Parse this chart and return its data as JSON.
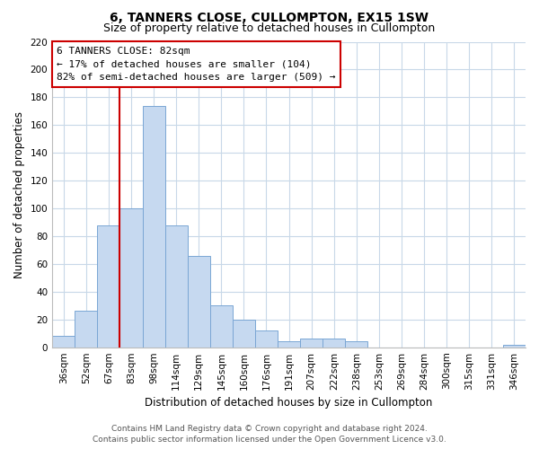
{
  "title": "6, TANNERS CLOSE, CULLOMPTON, EX15 1SW",
  "subtitle": "Size of property relative to detached houses in Cullompton",
  "xlabel": "Distribution of detached houses by size in Cullompton",
  "ylabel": "Number of detached properties",
  "bar_labels": [
    "36sqm",
    "52sqm",
    "67sqm",
    "83sqm",
    "98sqm",
    "114sqm",
    "129sqm",
    "145sqm",
    "160sqm",
    "176sqm",
    "191sqm",
    "207sqm",
    "222sqm",
    "238sqm",
    "253sqm",
    "269sqm",
    "284sqm",
    "300sqm",
    "315sqm",
    "331sqm",
    "346sqm"
  ],
  "bar_heights": [
    8,
    26,
    88,
    100,
    174,
    88,
    66,
    30,
    20,
    12,
    4,
    6,
    6,
    4,
    0,
    0,
    0,
    0,
    0,
    0,
    2
  ],
  "bar_color": "#c6d9f0",
  "bar_edge_color": "#7aa6d4",
  "vline_color": "#cc0000",
  "ylim": [
    0,
    220
  ],
  "yticks": [
    0,
    20,
    40,
    60,
    80,
    100,
    120,
    140,
    160,
    180,
    200,
    220
  ],
  "annotation_title": "6 TANNERS CLOSE: 82sqm",
  "annotation_line1": "← 17% of detached houses are smaller (104)",
  "annotation_line2": "82% of semi-detached houses are larger (509) →",
  "annotation_box_color": "#ffffff",
  "annotation_border_color": "#cc0000",
  "footer_line1": "Contains HM Land Registry data © Crown copyright and database right 2024.",
  "footer_line2": "Contains public sector information licensed under the Open Government Licence v3.0.",
  "bg_color": "#ffffff",
  "grid_color": "#c8d8e8",
  "title_fontsize": 10,
  "subtitle_fontsize": 9,
  "axis_label_fontsize": 8.5,
  "tick_fontsize": 7.5,
  "annotation_fontsize": 8,
  "footer_fontsize": 6.5
}
